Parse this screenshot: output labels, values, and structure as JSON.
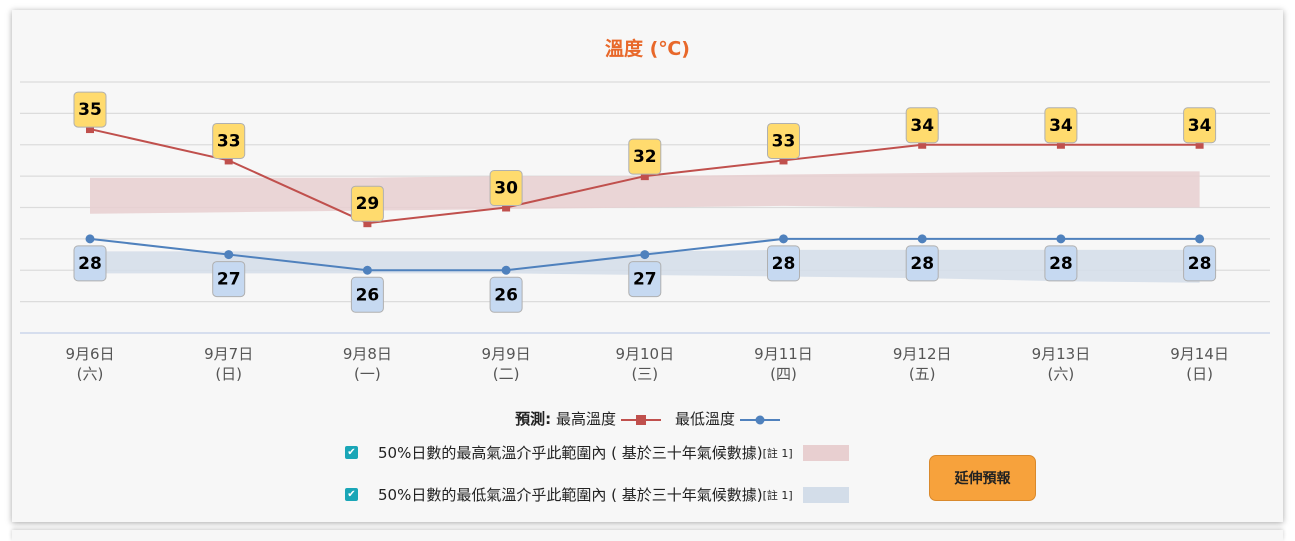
{
  "chart_data": {
    "type": "line",
    "title": "溫度 (℃)",
    "categories": [
      [
        "9月6日",
        "(六)"
      ],
      [
        "9月7日",
        "(日)"
      ],
      [
        "9月8日",
        "(一)"
      ],
      [
        "9月9日",
        "(二)"
      ],
      [
        "9月10日",
        "(三)"
      ],
      [
        "9月11日",
        "(四)"
      ],
      [
        "9月12日",
        "(五)"
      ],
      [
        "9月13日",
        "(六)"
      ],
      [
        "9月14日",
        "(日)"
      ]
    ],
    "ylim": [
      22,
      38
    ],
    "grid_step": 2,
    "series": [
      {
        "name": "最高溫度",
        "color": "#c0504d",
        "marker": "square",
        "label_bg": "#ffdb6e",
        "values": [
          35,
          33,
          29,
          30,
          32,
          33,
          34,
          34,
          34
        ]
      },
      {
        "name": "最低溫度",
        "color": "#4f81bd",
        "marker": "circle",
        "label_bg": "#c6d9f1",
        "values": [
          28,
          27,
          26,
          26,
          27,
          28,
          28,
          28,
          28
        ]
      }
    ],
    "bands": [
      {
        "name": "50%日數的最高氣溫介乎此範圍內（基於三十年氣候數據）",
        "color": "#e8cfd0",
        "low": [
          29.6,
          29.7,
          29.8,
          29.9,
          30.0,
          30.1,
          30.0,
          30.0,
          30.0
        ],
        "high": [
          31.9,
          31.9,
          31.9,
          32.0,
          32.0,
          32.1,
          32.2,
          32.3,
          32.3
        ]
      },
      {
        "name": "50%日數的最低氣溫介乎此範圍內（基於三十年氣候數據）",
        "color": "#d3dde9",
        "low": [
          25.8,
          25.8,
          25.8,
          25.8,
          25.7,
          25.6,
          25.5,
          25.3,
          25.2
        ],
        "high": [
          27.2,
          27.2,
          27.2,
          27.2,
          27.2,
          27.3,
          27.3,
          27.3,
          27.3
        ]
      }
    ]
  },
  "legend": {
    "prefix": "預測:",
    "max_label": "最高溫度",
    "min_label": "最低溫度",
    "band_max_label": "50%日數的最高氣溫介乎此範圍內 ( 基於三十年氣候數據)",
    "band_min_label": "50%日數的最低氣溫介乎此範圍內 ( 基於三十年氣候數據)",
    "note": "[註 1]"
  },
  "extend_button": "延伸預報"
}
